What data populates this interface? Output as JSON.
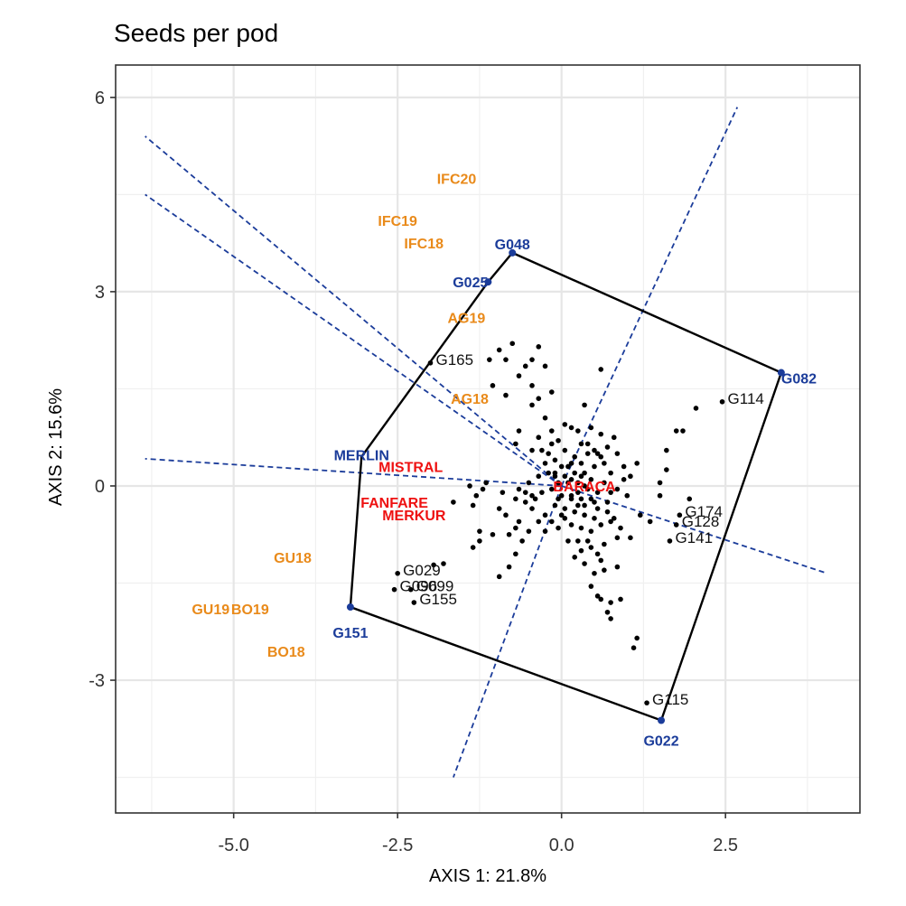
{
  "chart_data": {
    "type": "scatter",
    "title": "Seeds per pod",
    "xlabel": "AXIS 1: 21.8%",
    "ylabel": "AXIS 2: 15.6%",
    "xlim": [
      -6.8,
      4.55
    ],
    "ylim": [
      -5.05,
      6.5
    ],
    "x_ticks": [
      -5.0,
      -2.5,
      0.0,
      2.5
    ],
    "x_tick_labels": [
      "-5.0",
      "-2.5",
      "0.0",
      "2.5"
    ],
    "y_ticks": [
      -3,
      0,
      3,
      6
    ],
    "y_tick_labels": [
      "-3",
      "0",
      "3",
      "6"
    ],
    "grid": true,
    "colors": {
      "environment": "#E98A1A",
      "vertex": "#1B3C9A",
      "highlight": "#EE1111",
      "points": "#000000",
      "polygon": "#000000",
      "rays": "#1B3C9A"
    },
    "hull_vertices": [
      {
        "name": "G048",
        "x": -0.75,
        "y": 3.6
      },
      {
        "name": "G082",
        "x": 3.35,
        "y": 1.75
      },
      {
        "name": "G022",
        "x": 1.52,
        "y": -3.62
      },
      {
        "name": "G151",
        "x": -3.22,
        "y": -1.87
      },
      {
        "name": "MERLIN",
        "x": -3.05,
        "y": 0.45
      },
      {
        "name": "G025",
        "x": -1.12,
        "y": 3.15
      }
    ],
    "sector_lines": [
      {
        "x1": 0,
        "y1": 0,
        "x2": 2.68,
        "y2": 5.85
      },
      {
        "x1": 0,
        "y1": 0,
        "x2": -1.65,
        "y2": -4.5
      },
      {
        "x1": 0,
        "y1": 0,
        "x2": -6.35,
        "y2": 5.4
      },
      {
        "x1": 0,
        "y1": 0,
        "x2": -6.35,
        "y2": 4.5
      },
      {
        "x1": 0,
        "y1": 0,
        "x2": -6.35,
        "y2": 0.42
      },
      {
        "x1": 0,
        "y1": 0,
        "x2": 4.05,
        "y2": -1.35
      }
    ],
    "genotype_points": [
      [
        -0.95,
        2.1
      ],
      [
        -0.75,
        2.2
      ],
      [
        -0.35,
        2.15
      ],
      [
        -0.45,
        1.95
      ],
      [
        -0.85,
        1.95
      ],
      [
        -1.1,
        1.95
      ],
      [
        -0.55,
        1.85
      ],
      [
        -0.25,
        1.85
      ],
      [
        -0.65,
        1.7
      ],
      [
        -0.45,
        1.55
      ],
      [
        -1.05,
        1.55
      ],
      [
        0.6,
        1.8
      ],
      [
        -0.85,
        1.4
      ],
      [
        -0.35,
        1.35
      ],
      [
        -0.15,
        1.45
      ],
      [
        -0.45,
        1.25
      ],
      [
        0.35,
        1.25
      ],
      [
        -0.25,
        1.05
      ],
      [
        0.05,
        0.95
      ],
      [
        -0.15,
        0.85
      ],
      [
        0.15,
        0.9
      ],
      [
        0.25,
        0.85
      ],
      [
        0.45,
        0.9
      ],
      [
        -0.35,
        0.75
      ],
      [
        0.6,
        0.8
      ],
      [
        0.8,
        0.75
      ],
      [
        -0.65,
        0.85
      ],
      [
        -0.15,
        0.65
      ],
      [
        -0.05,
        0.7
      ],
      [
        0.3,
        0.65
      ],
      [
        -0.7,
        0.65
      ],
      [
        -0.45,
        0.55
      ],
      [
        -0.3,
        0.55
      ],
      [
        -0.2,
        0.5
      ],
      [
        0.05,
        0.55
      ],
      [
        0.4,
        0.5
      ],
      [
        0.55,
        0.5
      ],
      [
        0.7,
        0.6
      ],
      [
        0.85,
        0.5
      ],
      [
        -0.25,
        0.35
      ],
      [
        -0.1,
        0.4
      ],
      [
        0.0,
        0.3
      ],
      [
        0.15,
        0.35
      ],
      [
        0.3,
        0.35
      ],
      [
        0.5,
        0.3
      ],
      [
        0.65,
        0.35
      ],
      [
        0.75,
        0.2
      ],
      [
        0.95,
        0.3
      ],
      [
        1.15,
        0.35
      ],
      [
        -0.2,
        0.2
      ],
      [
        -0.1,
        0.15
      ],
      [
        0.05,
        0.15
      ],
      [
        0.2,
        0.2
      ],
      [
        0.35,
        0.2
      ],
      [
        0.45,
        0.1
      ],
      [
        0.65,
        0.05
      ],
      [
        -0.05,
        0.05
      ],
      [
        0.1,
        0.05
      ],
      [
        0.25,
        0.05
      ],
      [
        0.4,
        -0.05
      ],
      [
        0.55,
        -0.1
      ],
      [
        0.75,
        -0.1
      ],
      [
        0.85,
        -0.05
      ],
      [
        -0.15,
        -0.05
      ],
      [
        0.0,
        -0.15
      ],
      [
        0.15,
        -0.15
      ],
      [
        0.3,
        -0.2
      ],
      [
        0.5,
        -0.25
      ],
      [
        0.7,
        -0.25
      ],
      [
        1.0,
        -0.15
      ],
      [
        -0.3,
        -0.1
      ],
      [
        -0.4,
        -0.2
      ],
      [
        -0.55,
        -0.25
      ],
      [
        -0.7,
        -0.2
      ],
      [
        -0.9,
        -0.1
      ],
      [
        -1.2,
        -0.05
      ],
      [
        -0.1,
        -0.3
      ],
      [
        0.05,
        -0.35
      ],
      [
        0.2,
        -0.4
      ],
      [
        0.35,
        -0.45
      ],
      [
        0.5,
        -0.5
      ],
      [
        0.15,
        -0.6
      ],
      [
        0.3,
        -0.65
      ],
      [
        0.45,
        -0.7
      ],
      [
        0.6,
        -0.6
      ],
      [
        0.8,
        -0.5
      ],
      [
        0.85,
        -0.8
      ],
      [
        0.65,
        -0.9
      ],
      [
        0.45,
        -0.95
      ],
      [
        0.3,
        -1.0
      ],
      [
        0.2,
        -1.1
      ],
      [
        0.35,
        -1.2
      ],
      [
        0.5,
        -1.35
      ],
      [
        0.65,
        -1.3
      ],
      [
        0.85,
        -1.25
      ],
      [
        0.45,
        -1.55
      ],
      [
        0.55,
        -1.7
      ],
      [
        0.6,
        -1.75
      ],
      [
        0.75,
        -1.8
      ],
      [
        0.7,
        -1.95
      ],
      [
        0.75,
        -2.05
      ],
      [
        0.9,
        -1.75
      ],
      [
        -0.45,
        -0.35
      ],
      [
        -0.35,
        -0.55
      ],
      [
        -0.25,
        -0.7
      ],
      [
        -0.65,
        -0.55
      ],
      [
        -0.85,
        -0.45
      ],
      [
        -0.95,
        -0.35
      ],
      [
        -0.7,
        -0.65
      ],
      [
        -0.5,
        -0.7
      ],
      [
        -0.6,
        -0.85
      ],
      [
        -0.8,
        -0.75
      ],
      [
        -1.05,
        -0.75
      ],
      [
        -1.25,
        -0.7
      ],
      [
        -1.35,
        -0.95
      ],
      [
        -1.25,
        -0.85
      ],
      [
        -0.7,
        -1.05
      ],
      [
        -0.8,
        -1.25
      ],
      [
        -0.95,
        -1.4
      ],
      [
        -1.65,
        -0.25
      ],
      [
        -1.8,
        -1.2
      ],
      [
        -1.95,
        -1.22
      ],
      [
        -1.3,
        -0.15
      ],
      [
        -1.35,
        -0.3
      ],
      [
        -0.65,
        -0.05
      ],
      [
        -0.5,
        0.05
      ],
      [
        -0.35,
        0.15
      ],
      [
        -0.25,
        -0.45
      ],
      [
        -0.15,
        -0.55
      ],
      [
        0.05,
        -0.5
      ],
      [
        1.5,
        0.05
      ],
      [
        1.6,
        0.25
      ],
      [
        1.75,
        0.85
      ],
      [
        1.85,
        0.85
      ],
      [
        2.05,
        1.2
      ],
      [
        1.6,
        0.55
      ],
      [
        1.5,
        -0.15
      ],
      [
        1.95,
        -0.2
      ],
      [
        1.2,
        -0.45
      ],
      [
        1.35,
        -0.55
      ],
      [
        1.15,
        -2.35
      ],
      [
        1.1,
        -2.5
      ],
      [
        0.7,
        -0.4
      ],
      [
        0.9,
        -0.65
      ],
      [
        1.05,
        -0.8
      ],
      [
        0.55,
        -1.05
      ],
      [
        0.1,
        -0.85
      ],
      [
        -0.05,
        -0.65
      ],
      [
        0.25,
        -0.3
      ],
      [
        -1.4,
        0.0
      ],
      [
        0.4,
        0.65
      ],
      [
        0.5,
        0.55
      ],
      [
        0.6,
        0.45
      ],
      [
        0.2,
        0.45
      ],
      [
        0.95,
        0.1
      ],
      [
        1.05,
        0.15
      ],
      [
        0.15,
        -0.2
      ],
      [
        0.0,
        -0.45
      ],
      [
        -0.55,
        -0.1
      ],
      [
        -0.45,
        -0.15
      ],
      [
        -1.15,
        0.05
      ],
      [
        0.35,
        -0.3
      ],
      [
        0.55,
        -0.35
      ],
      [
        0.75,
        -0.55
      ],
      [
        0.25,
        -0.85
      ],
      [
        0.4,
        -0.85
      ],
      [
        0.6,
        -1.15
      ],
      [
        -0.1,
        0.2
      ],
      [
        0.1,
        0.3
      ],
      [
        0.3,
        0.15
      ],
      [
        0.15,
        0.1
      ],
      [
        0.25,
        -0.1
      ],
      [
        0.45,
        -0.2
      ],
      [
        -0.05,
        -0.2
      ],
      [
        0.35,
        0.0
      ]
    ],
    "labeled_genotypes": [
      {
        "name": "G165",
        "x": -2.0,
        "y": 1.9
      },
      {
        "name": "G114",
        "x": 2.45,
        "y": 1.3
      },
      {
        "name": "G174",
        "x": 1.8,
        "y": -0.45
      },
      {
        "name": "G128",
        "x": 1.75,
        "y": -0.6
      },
      {
        "name": "G141",
        "x": 1.65,
        "y": -0.85
      },
      {
        "name": "G029",
        "x": -2.5,
        "y": -1.35
      },
      {
        "name": "G099",
        "x": -2.3,
        "y": -1.6
      },
      {
        "name": "G096",
        "x": -2.55,
        "y": -1.6
      },
      {
        "name": "G155",
        "x": -2.25,
        "y": -1.8
      },
      {
        "name": "G115",
        "x": 1.3,
        "y": -3.35
      }
    ],
    "environments": [
      {
        "name": "IFC20",
        "x": -1.6,
        "y": 4.75
      },
      {
        "name": "IFC19",
        "x": -2.5,
        "y": 4.1
      },
      {
        "name": "IFC18",
        "x": -2.1,
        "y": 3.75
      },
      {
        "name": "AG19",
        "x": -1.45,
        "y": 2.6
      },
      {
        "name": "AG18",
        "x": -1.4,
        "y": 1.35
      },
      {
        "name": "GU18",
        "x": -4.1,
        "y": -1.1
      },
      {
        "name": "GU19",
        "x": -5.35,
        "y": -1.9
      },
      {
        "name": "BO19",
        "x": -4.75,
        "y": -1.9
      },
      {
        "name": "BO18",
        "x": -4.2,
        "y": -2.55
      }
    ],
    "highlight_labels": [
      {
        "name": "MISTRAL",
        "x": -2.3,
        "y": 0.3
      },
      {
        "name": "BARACA",
        "x": 0.35,
        "y": 0.0
      },
      {
        "name": "FANFARE",
        "x": -2.55,
        "y": -0.25
      },
      {
        "name": "MERKUR",
        "x": -2.25,
        "y": -0.45
      }
    ],
    "vertex_labels": [
      {
        "name": "G048",
        "x": -0.75,
        "y": 3.6,
        "anchor": "middle",
        "dx": 0,
        "dy": -10
      },
      {
        "name": "G025",
        "x": -1.12,
        "y": 3.15,
        "anchor": "end",
        "dx": 0,
        "dy": 0
      },
      {
        "name": "G082",
        "x": 3.35,
        "y": 1.75,
        "anchor": "start",
        "dx": 0,
        "dy": 6
      },
      {
        "name": "G022",
        "x": 1.52,
        "y": -3.62,
        "anchor": "middle",
        "dx": 0,
        "dy": 22
      },
      {
        "name": "G151",
        "x": -3.22,
        "y": -1.87,
        "anchor": "middle",
        "dx": 0,
        "dy": 28
      },
      {
        "name": "MERLIN",
        "x": -3.05,
        "y": 0.45,
        "anchor": "middle",
        "dx": 0,
        "dy": -2
      }
    ]
  }
}
